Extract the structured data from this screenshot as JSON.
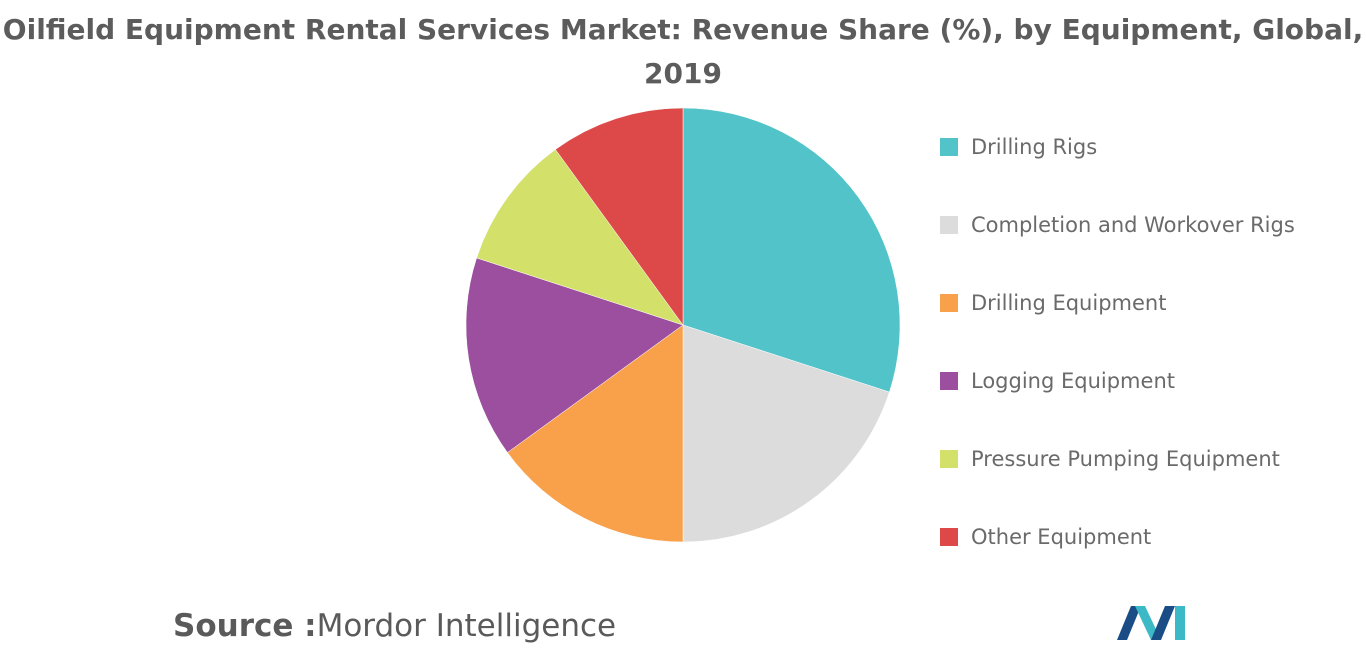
{
  "chart_data": {
    "type": "pie",
    "title": "Oilfield Equipment Rental Services Market: Revenue Share (%), by Equipment, Global, 2019",
    "title_lines": [
      "Oilfield Equipment Rental Services Market: Revenue Share (%), by Equipment, Global,",
      "2019"
    ],
    "categories": [
      "Drilling Rigs",
      "Completion and Workover Rigs",
      "Drilling Equipment",
      "Logging Equipment",
      "Pressure Pumping Equipment",
      "Other Equipment"
    ],
    "values": [
      30,
      20,
      15,
      15,
      10,
      10
    ],
    "colors": [
      "#52c3c9",
      "#dcdcdc",
      "#f9a04a",
      "#9c4f9e",
      "#d3e16a",
      "#dd4848"
    ],
    "legend": "right",
    "start_angle": "12 o'clock",
    "direction": "clockwise"
  },
  "source": {
    "label": "Source :",
    "text": "Mordor Intelligence"
  },
  "logo": {
    "icon": "mordor-intelligence-logo",
    "colors": [
      "#1a4d86",
      "#3cb9c7"
    ]
  }
}
